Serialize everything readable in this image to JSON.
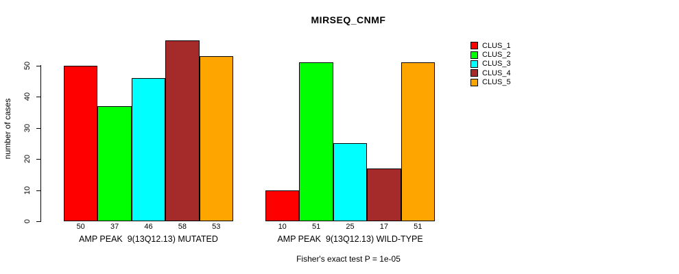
{
  "title": "MIRSEQ_CNMF",
  "chart_data": {
    "type": "bar",
    "title": "MIRSEQ_CNMF",
    "xlabel": "",
    "ylabel": "number of cases",
    "ylim": [
      0,
      58
    ],
    "yticks": [
      0,
      10,
      20,
      30,
      40,
      50
    ],
    "grid": false,
    "legend_position": "right",
    "categories": [
      "CLUS_1",
      "CLUS_2",
      "CLUS_3",
      "CLUS_4",
      "CLUS_5"
    ],
    "series_colors": [
      "#ff0000",
      "#00ff00",
      "#00ffff",
      "#a52a2a",
      "#ffa500"
    ],
    "groups": [
      {
        "label": "AMP PEAK  9(13Q12.13) MUTATED",
        "values": [
          50,
          37,
          46,
          58,
          53
        ]
      },
      {
        "label": "AMP PEAK  9(13Q12.13) WILD-TYPE",
        "values": [
          10,
          51,
          25,
          17,
          51
        ]
      }
    ],
    "bar_value_labels": [
      [
        50,
        37,
        46,
        58,
        53
      ],
      [
        10,
        51,
        25,
        17,
        51
      ]
    ],
    "annotation": "Fisher's exact test P = 1e-05"
  },
  "legend": {
    "items": [
      {
        "label": "CLUS_1",
        "color": "#ff0000"
      },
      {
        "label": "CLUS_2",
        "color": "#00ff00"
      },
      {
        "label": "CLUS_3",
        "color": "#00ffff"
      },
      {
        "label": "CLUS_4",
        "color": "#a52a2a"
      },
      {
        "label": "CLUS_5",
        "color": "#ffa500"
      }
    ]
  }
}
